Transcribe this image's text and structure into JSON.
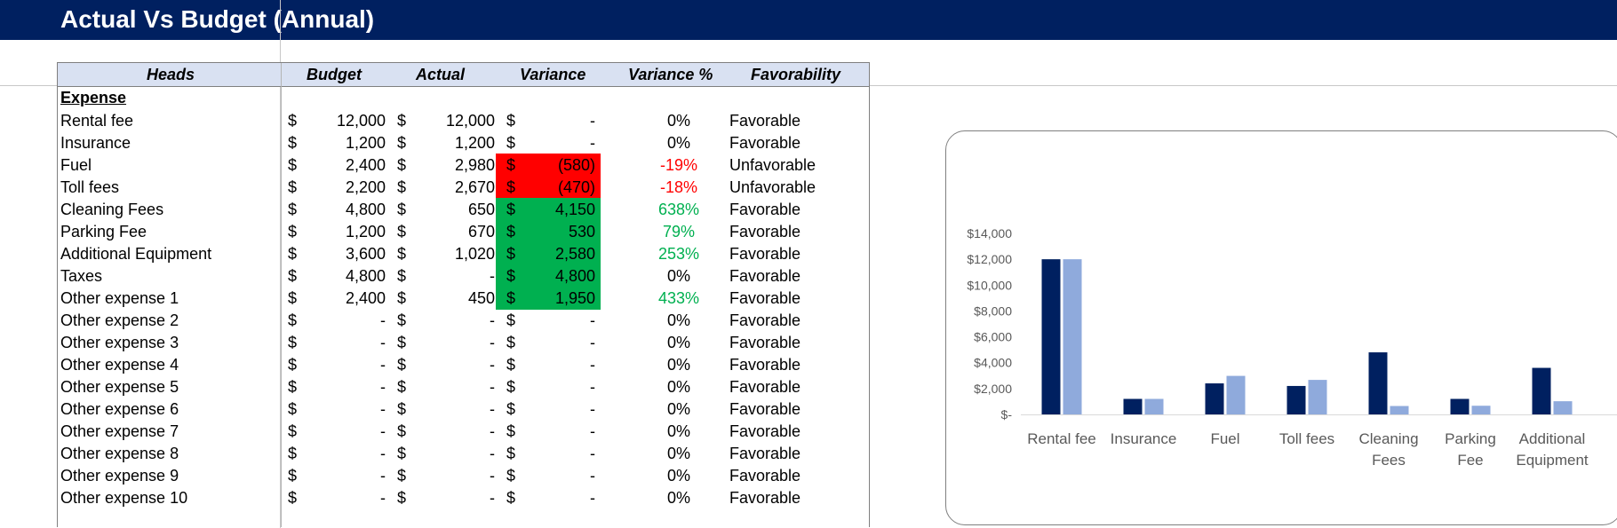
{
  "sheet": {
    "title": "Actual Vs Budget (Annual)"
  },
  "table": {
    "headers": {
      "heads": "Heads",
      "budget": "Budget",
      "actual": "Actual",
      "variance": "Variance",
      "variance_pct": "Variance %",
      "favorability": "Favorability"
    },
    "section_label": "Expense",
    "currency_symbol": "$",
    "rows": [
      {
        "head": "Rental fee",
        "budget": "12,000",
        "actual": "12,000",
        "variance": "-",
        "pct": "0%",
        "fav": "Favorable",
        "fill": "none",
        "pct_color": "black"
      },
      {
        "head": "Insurance",
        "budget": "1,200",
        "actual": "1,200",
        "variance": "-",
        "pct": "0%",
        "fav": "Favorable",
        "fill": "none",
        "pct_color": "black"
      },
      {
        "head": "Fuel",
        "budget": "2,400",
        "actual": "2,980",
        "variance": "(580)",
        "pct": "-19%",
        "fav": "Unfavorable",
        "fill": "red",
        "pct_color": "red"
      },
      {
        "head": "Toll fees",
        "budget": "2,200",
        "actual": "2,670",
        "variance": "(470)",
        "pct": "-18%",
        "fav": "Unfavorable",
        "fill": "red",
        "pct_color": "red"
      },
      {
        "head": "Cleaning Fees",
        "budget": "4,800",
        "actual": "650",
        "variance": "4,150",
        "pct": "638%",
        "fav": "Favorable",
        "fill": "green",
        "pct_color": "green"
      },
      {
        "head": "Parking Fee",
        "budget": "1,200",
        "actual": "670",
        "variance": "530",
        "pct": "79%",
        "fav": "Favorable",
        "fill": "green",
        "pct_color": "green"
      },
      {
        "head": "Additional Equipment",
        "budget": "3,600",
        "actual": "1,020",
        "variance": "2,580",
        "pct": "253%",
        "fav": "Favorable",
        "fill": "green",
        "pct_color": "green"
      },
      {
        "head": "Taxes",
        "budget": "4,800",
        "actual": "-",
        "variance": "4,800",
        "pct": "0%",
        "fav": "Favorable",
        "fill": "green",
        "pct_color": "black"
      },
      {
        "head": "Other expense 1",
        "budget": "2,400",
        "actual": "450",
        "variance": "1,950",
        "pct": "433%",
        "fav": "Favorable",
        "fill": "green",
        "pct_color": "green"
      },
      {
        "head": "Other expense 2",
        "budget": "-",
        "actual": "-",
        "variance": "-",
        "pct": "0%",
        "fav": "Favorable",
        "fill": "none",
        "pct_color": "black"
      },
      {
        "head": "Other expense 3",
        "budget": "-",
        "actual": "-",
        "variance": "-",
        "pct": "0%",
        "fav": "Favorable",
        "fill": "none",
        "pct_color": "black"
      },
      {
        "head": "Other expense 4",
        "budget": "-",
        "actual": "-",
        "variance": "-",
        "pct": "0%",
        "fav": "Favorable",
        "fill": "none",
        "pct_color": "black"
      },
      {
        "head": "Other expense 5",
        "budget": "-",
        "actual": "-",
        "variance": "-",
        "pct": "0%",
        "fav": "Favorable",
        "fill": "none",
        "pct_color": "black"
      },
      {
        "head": "Other expense 6",
        "budget": "-",
        "actual": "-",
        "variance": "-",
        "pct": "0%",
        "fav": "Favorable",
        "fill": "none",
        "pct_color": "black"
      },
      {
        "head": "Other expense 7",
        "budget": "-",
        "actual": "-",
        "variance": "-",
        "pct": "0%",
        "fav": "Favorable",
        "fill": "none",
        "pct_color": "black"
      },
      {
        "head": "Other expense 8",
        "budget": "-",
        "actual": "-",
        "variance": "-",
        "pct": "0%",
        "fav": "Favorable",
        "fill": "none",
        "pct_color": "black"
      },
      {
        "head": "Other expense 9",
        "budget": "-",
        "actual": "-",
        "variance": "-",
        "pct": "0%",
        "fav": "Favorable",
        "fill": "none",
        "pct_color": "black"
      },
      {
        "head": "Other expense 10",
        "budget": "-",
        "actual": "-",
        "variance": "-",
        "pct": "0%",
        "fav": "Favorable",
        "fill": "none",
        "pct_color": "black"
      }
    ]
  },
  "colors": {
    "banner": "#002060",
    "header_fill": "#d9e1f2",
    "unfavorable_fill": "#ff0000",
    "favorable_fill": "#00b050",
    "budget_series": "#002060",
    "actual_series": "#8faadc"
  },
  "chart_data": {
    "type": "bar",
    "categories": [
      "Rental fee",
      "Insurance",
      "Fuel",
      "Toll fees",
      "Cleaning Fees",
      "Parking Fee",
      "Additional Equipment"
    ],
    "series": [
      {
        "values": [
          12000,
          1200,
          2400,
          2200,
          4800,
          1200,
          3600
        ]
      },
      {
        "values": [
          12000,
          1200,
          2980,
          2670,
          650,
          670,
          1020
        ]
      }
    ],
    "y_tick_labels": [
      "$-",
      "$2,000",
      "$4,000",
      "$6,000",
      "$8,000",
      "$10,000",
      "$12,000",
      "$14,000"
    ],
    "ylim": [
      0,
      14000
    ],
    "grid": false,
    "legend": "none"
  }
}
